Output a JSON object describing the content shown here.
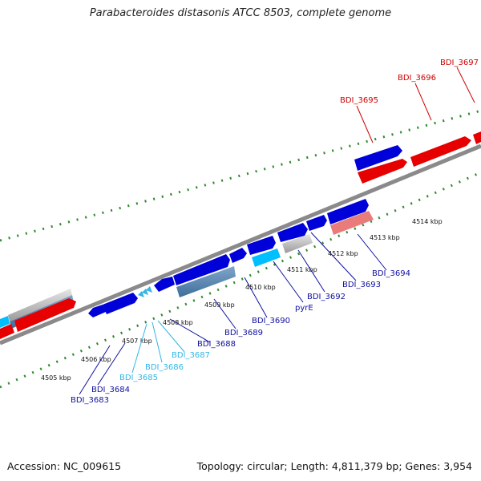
{
  "title": "Parabacteroides distasonis ATCC 8503, complete genome",
  "footer": {
    "accession": "Accession: NC_009615",
    "stats": "Topology: circular; Length: 4,811,379 bp; Genes: 3,954"
  },
  "colors": {
    "forward_gene": "#e60000",
    "reverse_gene": "#0000d8",
    "label_red": "#d00000",
    "label_blue": "#1010a0",
    "label_cyan": "#33b5e6",
    "tick_green": "#2e8b2e",
    "backbone_gray": "#8a8a8a"
  },
  "scale_labels": [
    "4505 kbp",
    "4506 kbp",
    "4507 kbp",
    "4508 kbp",
    "4509 kbp",
    "4510 kbp",
    "4511 kbp",
    "4512 kbp",
    "4513 kbp",
    "4514 kbp"
  ],
  "gene_labels": [
    {
      "text": "BDI_3683",
      "group": "blue"
    },
    {
      "text": "BDI_3684",
      "group": "blue"
    },
    {
      "text": "BDI_3685",
      "group": "cyan"
    },
    {
      "text": "BDI_3686",
      "group": "cyan"
    },
    {
      "text": "BDI_3687",
      "group": "cyan"
    },
    {
      "text": "BDI_3688",
      "group": "blue"
    },
    {
      "text": "BDI_3689",
      "group": "blue"
    },
    {
      "text": "BDI_3690",
      "group": "blue"
    },
    {
      "text": "pyrE",
      "group": "blue"
    },
    {
      "text": "BDI_3692",
      "group": "blue"
    },
    {
      "text": "BDI_3693",
      "group": "blue"
    },
    {
      "text": "BDI_3694",
      "group": "blue"
    },
    {
      "text": "BDI_3695",
      "group": "red"
    },
    {
      "text": "BDI_3696",
      "group": "red"
    },
    {
      "text": "BDI_3697",
      "group": "red"
    }
  ]
}
